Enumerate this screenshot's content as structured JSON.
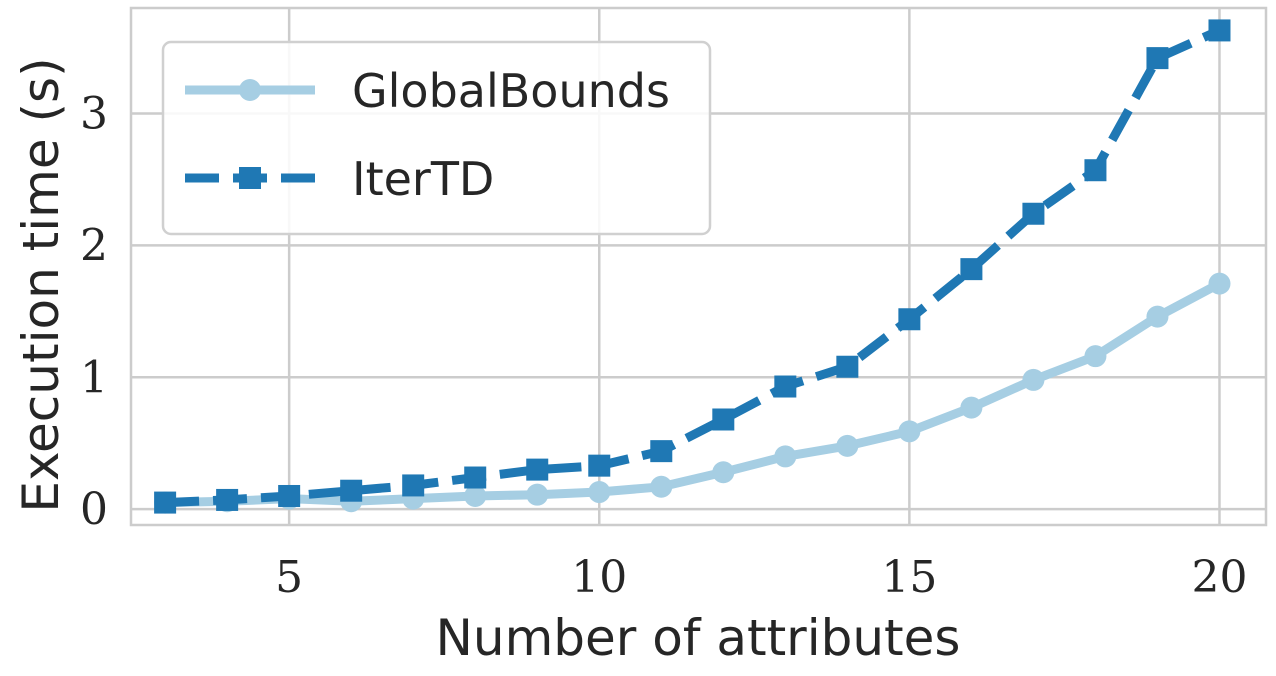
{
  "chart_data": {
    "type": "line",
    "title": "",
    "xlabel": "Number of attributes",
    "ylabel": "Execution time (s)",
    "xlim": [
      2.45,
      20.75
    ],
    "ylim": [
      -0.12,
      3.8
    ],
    "xticks": [
      5,
      10,
      15,
      20
    ],
    "yticks": [
      0,
      1,
      2,
      3
    ],
    "xtick_labels": [
      "5",
      "10",
      "15",
      "20"
    ],
    "ytick_labels": [
      "0",
      "1",
      "2",
      "3"
    ],
    "grid": true,
    "legend_position": "top-left",
    "x": [
      3,
      4,
      5,
      6,
      7,
      8,
      9,
      10,
      11,
      12,
      13,
      14,
      15,
      16,
      17,
      18,
      19,
      20
    ],
    "series": [
      {
        "name": "GlobalBounds",
        "color": "#a6cee3",
        "line_style": "solid",
        "marker": "circle",
        "values": [
          0.05,
          0.06,
          0.08,
          0.06,
          0.08,
          0.1,
          0.11,
          0.13,
          0.17,
          0.28,
          0.4,
          0.48,
          0.59,
          0.77,
          0.98,
          1.16,
          1.46,
          1.71
        ]
      },
      {
        "name": "IterTD",
        "color": "#1f78b4",
        "line_style": "dashed",
        "marker": "square",
        "values": [
          0.05,
          0.07,
          0.1,
          0.14,
          0.18,
          0.24,
          0.3,
          0.33,
          0.44,
          0.68,
          0.93,
          1.08,
          1.44,
          1.82,
          2.24,
          2.57,
          3.42,
          3.63
        ]
      }
    ]
  }
}
